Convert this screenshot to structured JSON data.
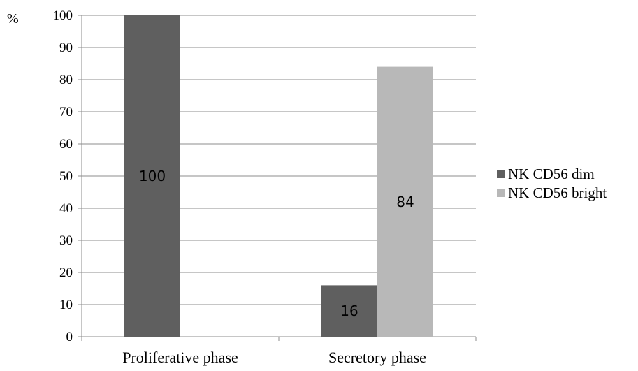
{
  "chart_data": {
    "type": "bar",
    "categories": [
      "Proliferative phase",
      "Secretory phase"
    ],
    "series": [
      {
        "name": "NK CD56 dim",
        "values": [
          100,
          16
        ],
        "data_labels": [
          "100",
          "16"
        ],
        "color": "#5f5f5f"
      },
      {
        "name": "NK CD56 bright",
        "values": [
          0,
          84
        ],
        "data_labels": [
          "",
          "84"
        ],
        "color": "#b8b8b8"
      }
    ],
    "y_unit": "%",
    "ylim": [
      0,
      100
    ],
    "y_ticks": [
      "0",
      "10",
      "20",
      "30",
      "40",
      "50",
      "60",
      "70",
      "80",
      "90",
      "100"
    ],
    "grid": true,
    "legend_position": "right"
  }
}
